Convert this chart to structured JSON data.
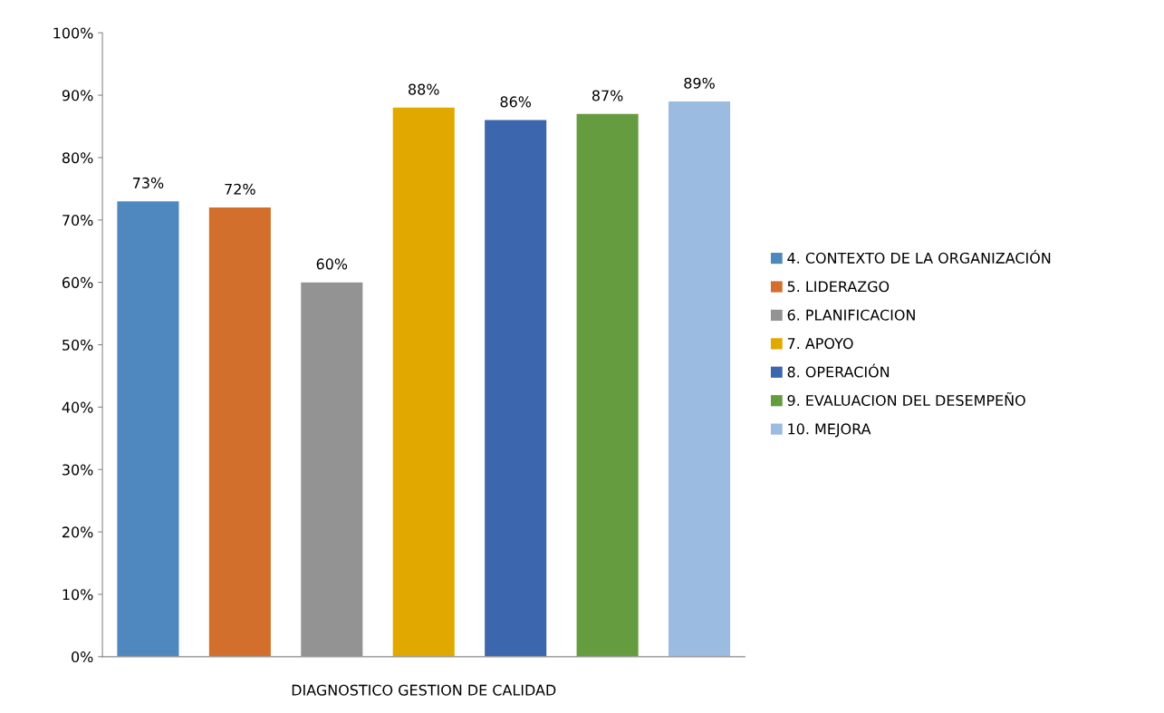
{
  "chart_data": {
    "type": "bar",
    "categories": [
      "DIAGNOSTICO GESTION DE CALIDAD"
    ],
    "series": [
      {
        "name": "4. CONTEXTO DE LA ORGANIZACIÓN",
        "color": "#4f88be",
        "values": [
          73
        ],
        "value_labels": [
          "73%"
        ]
      },
      {
        "name": "5. LIDERAZGO",
        "color": "#d36f2c",
        "values": [
          72
        ],
        "value_labels": [
          "72%"
        ]
      },
      {
        "name": "6. PLANIFICACION",
        "color": "#939393",
        "values": [
          60
        ],
        "value_labels": [
          "60%"
        ]
      },
      {
        "name": "7. APOYO",
        "color": "#e1a800",
        "values": [
          88
        ],
        "value_labels": [
          "88%"
        ]
      },
      {
        "name": "8. OPERACIÓN",
        "color": "#3c66ae",
        "values": [
          86
        ],
        "value_labels": [
          "86%"
        ]
      },
      {
        "name": "9. EVALUACION DEL DESEMPEÑO",
        "color": "#659c40",
        "values": [
          87
        ],
        "value_labels": [
          "87%"
        ]
      },
      {
        "name": "10. MEJORA",
        "color": "#9bbbe0",
        "values": [
          89
        ],
        "value_labels": [
          "89%"
        ]
      }
    ],
    "ylim": [
      0,
      100
    ],
    "yticks": [
      {
        "value": 0,
        "label": "0%"
      },
      {
        "value": 10,
        "label": "10%"
      },
      {
        "value": 20,
        "label": "20%"
      },
      {
        "value": 30,
        "label": "30%"
      },
      {
        "value": 40,
        "label": "40%"
      },
      {
        "value": 50,
        "label": "50%"
      },
      {
        "value": 60,
        "label": "60%"
      },
      {
        "value": 70,
        "label": "70%"
      },
      {
        "value": 80,
        "label": "80%"
      },
      {
        "value": 90,
        "label": "90%"
      },
      {
        "value": 100,
        "label": "100%"
      }
    ],
    "grid": false,
    "legend": "right"
  }
}
